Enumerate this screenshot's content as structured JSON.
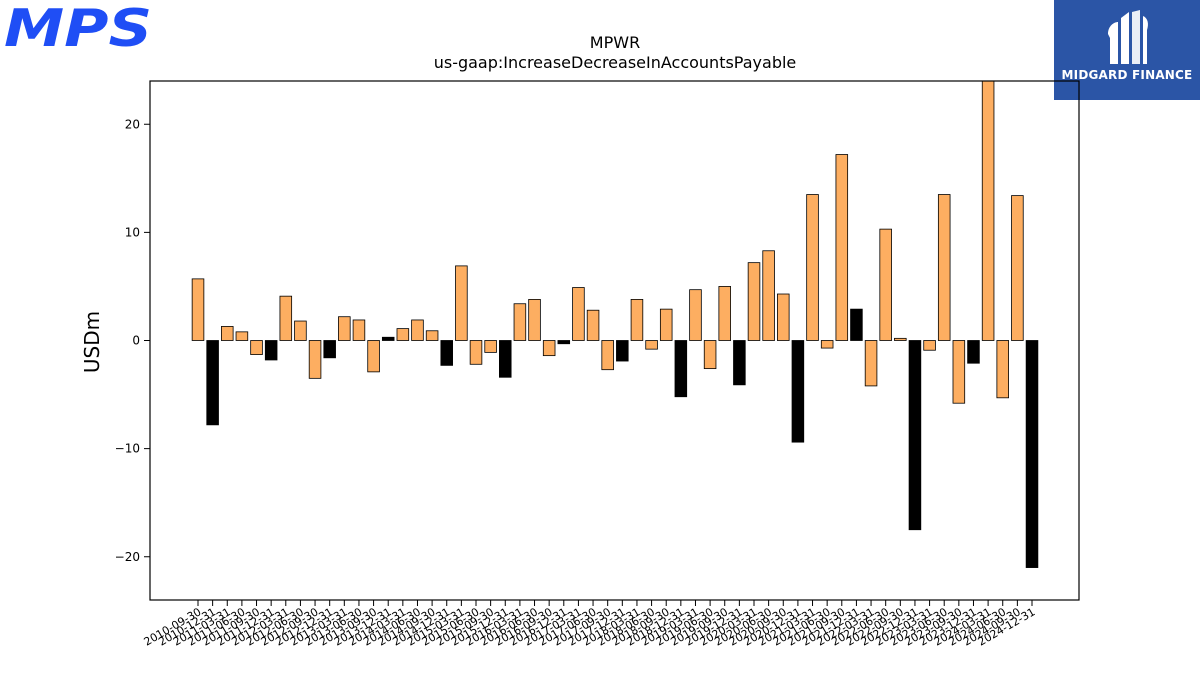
{
  "brand": {
    "logo_text": "MPS",
    "logo_color": "#1f4ef5",
    "badge_text": "MIDGARD FINANCE",
    "badge_color": "#2b55a6"
  },
  "chart_data": {
    "type": "bar",
    "title": "MPWR",
    "subtitle": "us-gaap:IncreaseDecreaseInAccountsPayable",
    "xlabel": "",
    "ylabel": "USDm",
    "ylim": [
      -24,
      24
    ],
    "yticks": [
      -20,
      -10,
      0,
      10,
      20
    ],
    "grid": false,
    "colors": {
      "quarter": "#fdae61",
      "year_end": "#000000"
    },
    "categories": [
      "2010-09-30",
      "2010-12-31",
      "2011-03-31",
      "2011-06-30",
      "2011-09-30",
      "2011-12-31",
      "2012-03-31",
      "2012-06-30",
      "2012-09-30",
      "2012-12-31",
      "2013-03-31",
      "2013-06-30",
      "2013-09-30",
      "2013-12-31",
      "2014-03-31",
      "2014-06-30",
      "2014-09-30",
      "2014-12-31",
      "2015-03-31",
      "2015-06-30",
      "2015-09-30",
      "2015-12-31",
      "2016-03-31",
      "2016-06-30",
      "2016-09-30",
      "2016-12-31",
      "2017-03-31",
      "2017-06-30",
      "2017-09-30",
      "2017-12-31",
      "2018-03-31",
      "2018-06-30",
      "2018-09-30",
      "2018-12-31",
      "2019-03-31",
      "2019-06-30",
      "2019-09-30",
      "2019-12-31",
      "2020-03-31",
      "2020-06-30",
      "2020-09-30",
      "2020-12-31",
      "2021-03-31",
      "2021-06-30",
      "2021-09-30",
      "2021-12-31",
      "2022-03-31",
      "2022-06-30",
      "2022-09-30",
      "2022-12-31",
      "2023-03-31",
      "2023-06-30",
      "2023-09-30",
      "2023-12-31",
      "2024-03-31",
      "2024-06-30",
      "2024-09-30",
      "2024-12-31"
    ],
    "values": [
      5.7,
      -7.8,
      1.3,
      0.8,
      -1.3,
      -1.8,
      4.1,
      1.8,
      -3.5,
      -1.6,
      2.2,
      1.9,
      -2.9,
      0.3,
      1.1,
      1.9,
      0.9,
      -2.3,
      6.9,
      -2.2,
      -1.1,
      -3.4,
      3.4,
      3.8,
      -1.4,
      -0.3,
      4.9,
      2.8,
      -2.7,
      -1.9,
      3.8,
      -0.8,
      2.9,
      -5.2,
      4.7,
      -2.6,
      5.0,
      -4.1,
      7.2,
      8.3,
      4.3,
      -9.4,
      13.5,
      -0.7,
      17.2,
      2.9,
      -4.2,
      10.3,
      0.2,
      -17.5,
      -0.9,
      13.5,
      -5.8,
      -2.1,
      24.5,
      -5.3,
      13.4,
      -21.0
    ]
  }
}
